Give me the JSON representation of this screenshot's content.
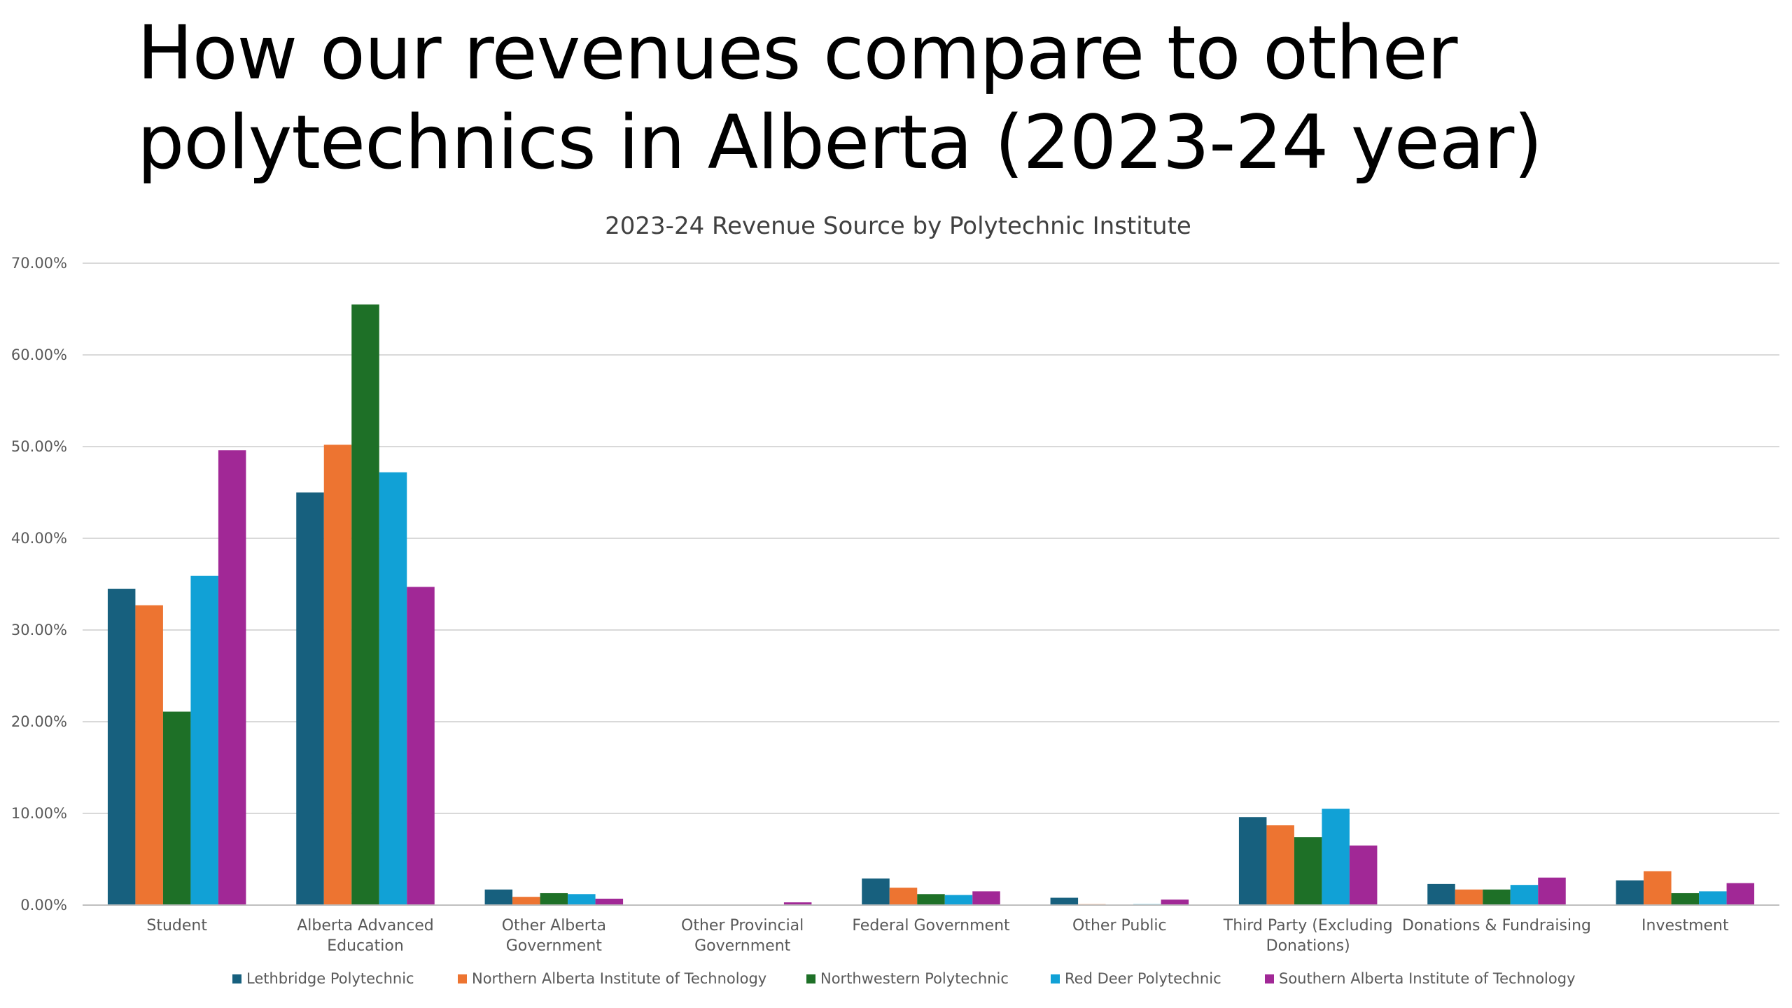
{
  "slide": {
    "title_line1": "How our revenues compare to other",
    "title_line2": "polytechnics in Alberta (2023-24 year)"
  },
  "chart_data": {
    "type": "bar",
    "title": "2023-24 Revenue Source by Polytechnic Institute",
    "xlabel": "",
    "ylabel": "",
    "ylim": [
      0,
      0.7
    ],
    "ytick_values": [
      0,
      0.1,
      0.2,
      0.3,
      0.4,
      0.5,
      0.6,
      0.7
    ],
    "ytick_labels": [
      "0.00%",
      "10.00%",
      "20.00%",
      "30.00%",
      "40.00%",
      "50.00%",
      "60.00%",
      "70.00%"
    ],
    "grid": true,
    "legend_position": "bottom",
    "categories": [
      [
        "Student"
      ],
      [
        "Alberta Advanced",
        "Education"
      ],
      [
        "Other Alberta",
        "Government"
      ],
      [
        "Other Provincial",
        "Government"
      ],
      [
        "Federal Government"
      ],
      [
        "Other Public"
      ],
      [
        "Third Party (Excluding",
        "Donations)"
      ],
      [
        "Donations & Fundraising"
      ],
      [
        "Investment"
      ]
    ],
    "series": [
      {
        "name": "Lethbridge Polytechnic",
        "color": "#17607e",
        "values": [
          0.345,
          0.45,
          0.017,
          0.0005,
          0.029,
          0.008,
          0.096,
          0.023,
          0.027
        ]
      },
      {
        "name": "Northern Alberta Institute of Technology",
        "color": "#ed7431",
        "values": [
          0.327,
          0.502,
          0.009,
          0.0,
          0.019,
          0.001,
          0.087,
          0.017,
          0.037
        ]
      },
      {
        "name": "Northwestern Polytechnic",
        "color": "#1e7027",
        "values": [
          0.211,
          0.655,
          0.013,
          0.0,
          0.012,
          0.0,
          0.074,
          0.017,
          0.013
        ]
      },
      {
        "name": "Red Deer Polytechnic",
        "color": "#11a1d6",
        "values": [
          0.359,
          0.472,
          0.012,
          0.0,
          0.011,
          0.001,
          0.105,
          0.022,
          0.015
        ]
      },
      {
        "name": "Southern Alberta Institute of Technology",
        "color": "#a12896",
        "values": [
          0.496,
          0.347,
          0.007,
          0.003,
          0.015,
          0.006,
          0.065,
          0.03,
          0.024
        ]
      }
    ]
  }
}
